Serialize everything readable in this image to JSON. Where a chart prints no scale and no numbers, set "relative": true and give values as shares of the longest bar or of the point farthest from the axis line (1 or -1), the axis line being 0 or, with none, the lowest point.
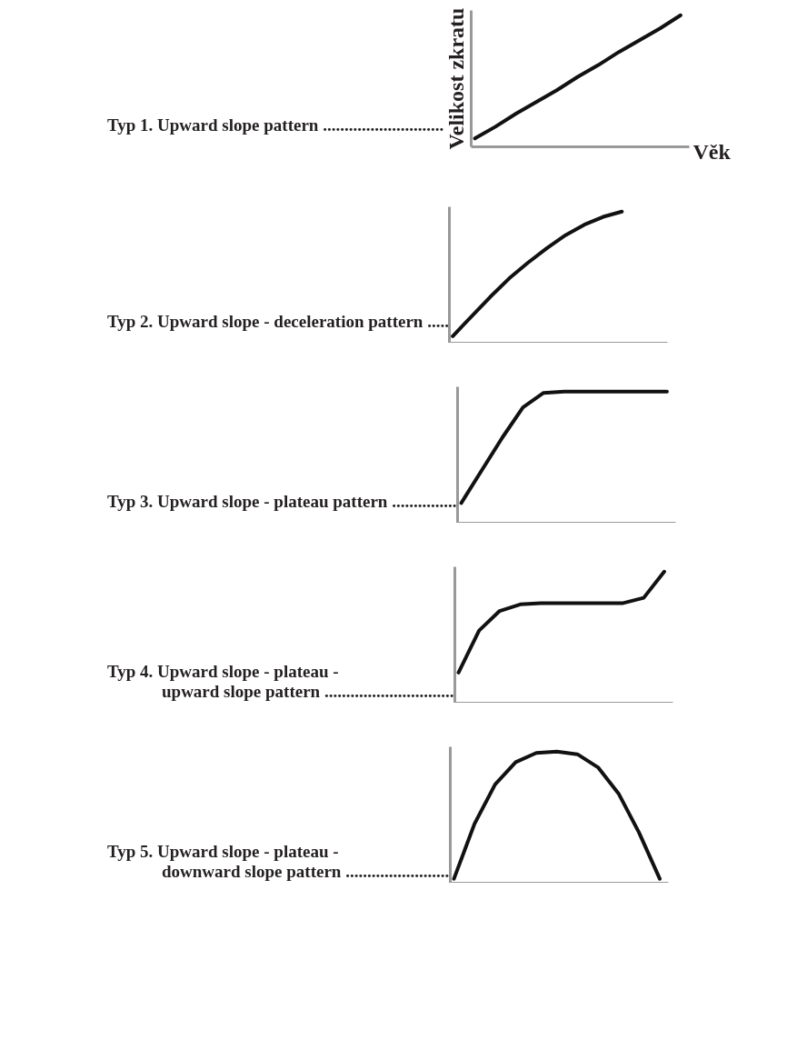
{
  "chart_data": [
    {
      "type": "line",
      "title": "Typ 1. Upward slope pattern ............................",
      "ylabel": "Velikost zkratu",
      "xlabel": "Věk",
      "relative": true,
      "categories": [
        null,
        null,
        null,
        null,
        null,
        null,
        null,
        null,
        null,
        null,
        null
      ],
      "series": [
        {
          "color": "#111111",
          "values": [
            0.06,
            0.15,
            0.25,
            0.34,
            0.43,
            0.53,
            0.62,
            0.72,
            0.81,
            0.9,
            1
          ]
        }
      ]
    },
    {
      "type": "line",
      "title": "Typ 2. Upward slope - deceleration pattern .....",
      "relative": true,
      "categories": [
        null,
        null,
        null,
        null,
        null,
        null,
        null,
        null,
        null,
        null,
        null,
        null
      ],
      "series": [
        {
          "color": "#111111",
          "values": [
            0.05,
            0.2,
            0.35,
            0.49,
            0.61,
            0.72,
            0.82,
            0.9,
            0.96,
            1,
            null,
            null
          ]
        }
      ]
    },
    {
      "type": "line",
      "title": "Typ 3. Upward slope - plateau pattern ...............",
      "relative": true,
      "categories": [
        null,
        null,
        null,
        null,
        null,
        null,
        null,
        null,
        null,
        null,
        null
      ],
      "series": [
        {
          "color": "#111111",
          "values": [
            0.15,
            0.4,
            0.65,
            0.88,
            0.99,
            1,
            1,
            1,
            1,
            1,
            1
          ]
        }
      ]
    },
    {
      "type": "line",
      "title": "Typ 4. Upward slope - plateau -\nupward slope pattern ..............................",
      "relative": true,
      "categories": [
        null,
        null,
        null,
        null,
        null,
        null,
        null,
        null,
        null,
        null,
        null
      ],
      "series": [
        {
          "color": "#111111",
          "values": [
            0.23,
            0.55,
            0.7,
            0.75,
            0.76,
            0.76,
            0.76,
            0.76,
            0.76,
            0.8,
            1
          ]
        }
      ]
    },
    {
      "type": "line",
      "title": "Typ 5. Upward slope - plateau -\ndownward slope pattern ........................",
      "relative": true,
      "categories": [
        null,
        null,
        null,
        null,
        null,
        null,
        null,
        null,
        null,
        null,
        null
      ],
      "series": [
        {
          "color": "#111111",
          "values": [
            0.03,
            0.45,
            0.75,
            0.92,
            0.99,
            1,
            0.98,
            0.88,
            0.68,
            0.38,
            0.03
          ]
        }
      ]
    }
  ]
}
